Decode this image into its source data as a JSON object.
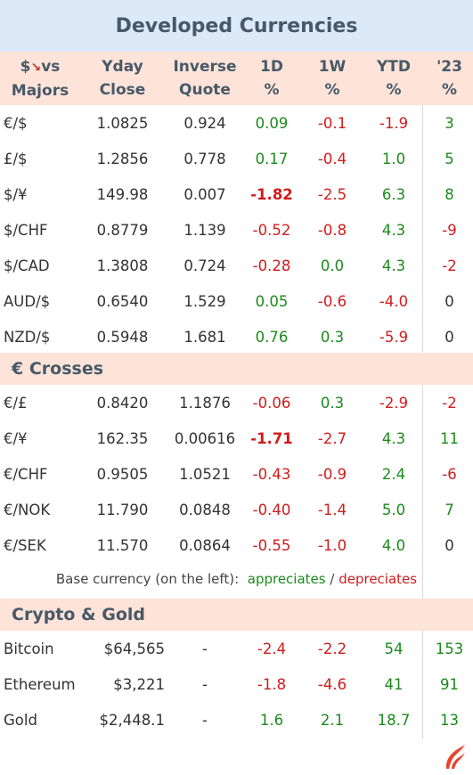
{
  "title": "Developed Currencies",
  "header": {
    "pair_line1": "$",
    "pair_line1b": "vs",
    "pair_line2": "Majors",
    "yday_line1": "Yday",
    "yday_line2": "Close",
    "inverse_line1": "Inverse",
    "inverse_line2": "Quote",
    "d1_line1": "1D",
    "d1_line2": "%",
    "w1_line1": "1W",
    "w1_line2": "%",
    "ytd_line1": "YTD",
    "ytd_line2": "%",
    "y23_line1": "'23",
    "y23_line2": "%"
  },
  "majors": [
    {
      "pair": "€/$",
      "close": "1.0825",
      "inverse": "0.924",
      "d1": "0.09",
      "w1": "-0.1",
      "ytd": "-1.9",
      "y23": "3"
    },
    {
      "pair": "£/$",
      "close": "1.2856",
      "inverse": "0.778",
      "d1": "0.17",
      "w1": "-0.4",
      "ytd": "1.0",
      "y23": "5"
    },
    {
      "pair": "$/¥",
      "close": "149.98",
      "inverse": "0.007",
      "d1": "-1.82",
      "w1": "-2.5",
      "ytd": "6.3",
      "y23": "8"
    },
    {
      "pair": "$/CHF",
      "close": "0.8779",
      "inverse": "1.139",
      "d1": "-0.52",
      "w1": "-0.8",
      "ytd": "4.3",
      "y23": "-9"
    },
    {
      "pair": "$/CAD",
      "close": "1.3808",
      "inverse": "0.724",
      "d1": "-0.28",
      "w1": "0.0",
      "ytd": "4.3",
      "y23": "-2"
    },
    {
      "pair": "AUD/$",
      "close": "0.6540",
      "inverse": "1.529",
      "d1": "0.05",
      "w1": "-0.6",
      "ytd": "-4.0",
      "y23": "0"
    },
    {
      "pair": "NZD/$",
      "close": "0.5948",
      "inverse": "1.681",
      "d1": "0.76",
      "w1": "0.3",
      "ytd": "-5.9",
      "y23": "0"
    }
  ],
  "crosses_title": "€ Crosses",
  "crosses": [
    {
      "pair": "€/£",
      "close": "0.8420",
      "inverse": "1.1876",
      "d1": "-0.06",
      "w1": "0.3",
      "ytd": "-2.9",
      "y23": "-2"
    },
    {
      "pair": "€/¥",
      "close": "162.35",
      "inverse": "0.00616",
      "d1": "-1.71",
      "w1": "-2.7",
      "ytd": "4.3",
      "y23": "11"
    },
    {
      "pair": "€/CHF",
      "close": "0.9505",
      "inverse": "1.0521",
      "d1": "-0.43",
      "w1": "-0.9",
      "ytd": "2.4",
      "y23": "-6"
    },
    {
      "pair": "€/NOK",
      "close": "11.790",
      "inverse": "0.0848",
      "d1": "-0.40",
      "w1": "-1.4",
      "ytd": "5.0",
      "y23": "7"
    },
    {
      "pair": "€/SEK",
      "close": "11.570",
      "inverse": "0.0864",
      "d1": "-0.55",
      "w1": "-1.0",
      "ytd": "4.0",
      "y23": "0"
    }
  ],
  "note": {
    "prefix": "Base currency (on the left):",
    "up": "appreciates",
    "sep": "/",
    "down": "depreciates"
  },
  "crypto_title": "Crypto & Gold",
  "crypto": [
    {
      "pair": "Bitcoin",
      "close": "$64,565",
      "inverse": "-",
      "d1": "-2.4",
      "w1": "-2.2",
      "ytd": "54",
      "y23": "153"
    },
    {
      "pair": "Ethereum",
      "close": "$3,221",
      "inverse": "-",
      "d1": "-1.8",
      "w1": "-4.6",
      "ytd": "41",
      "y23": "91"
    },
    {
      "pair": "Gold",
      "close": "$2,448.1",
      "inverse": "-",
      "d1": "1.6",
      "w1": "2.1",
      "ytd": "18.7",
      "y23": "13"
    }
  ],
  "colors": {
    "positive": "#1b8a1b",
    "negative": "#d01c1c",
    "title_bg": "#dde9f6",
    "section_bg": "#fde3d8",
    "logo": "#e8442e"
  },
  "icons": {
    "arrow": "down-right-arrow-icon",
    "logo": "flame-logo-icon"
  }
}
